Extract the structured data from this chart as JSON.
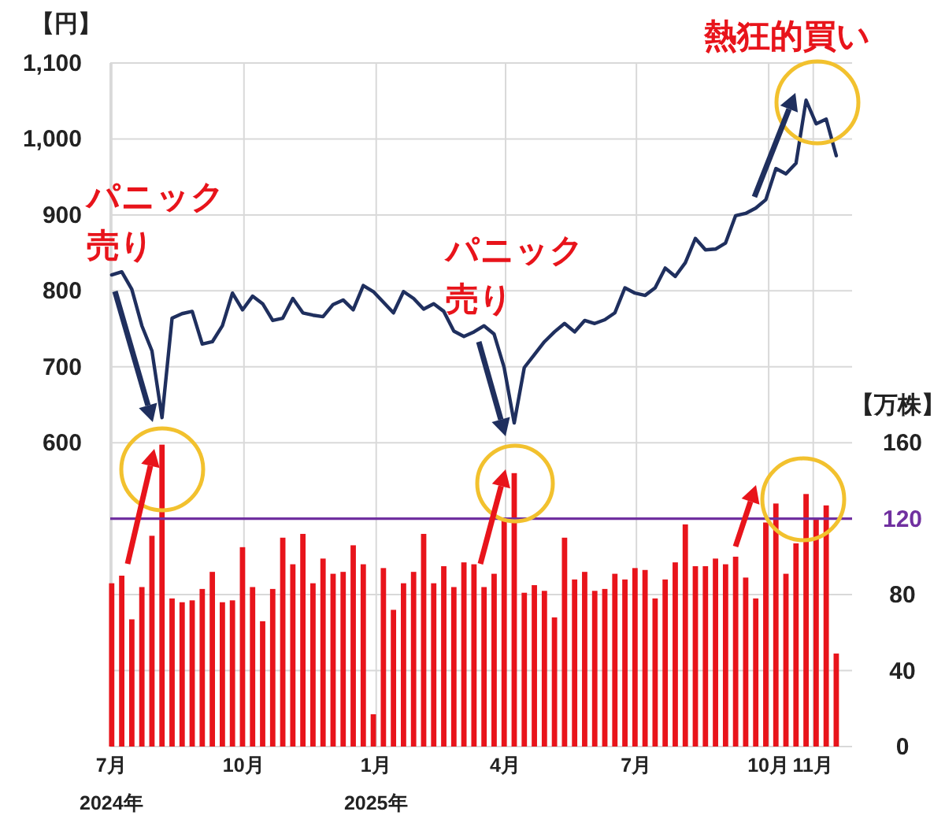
{
  "chart_data": {
    "type": "bar",
    "ylabel": "【円】",
    "y2label": "【万株】",
    "x": [
      "2024-07-01",
      "2024-07-08",
      "2024-07-15",
      "2024-07-22",
      "2024-07-29",
      "2024-08-05",
      "2024-08-12",
      "2024-08-19",
      "2024-08-26",
      "2024-09-02",
      "2024-09-09",
      "2024-09-16",
      "2024-09-23",
      "2024-09-30",
      "2024-10-07",
      "2024-10-14",
      "2024-10-21",
      "2024-10-28",
      "2024-11-04",
      "2024-11-11",
      "2024-11-18",
      "2024-11-25",
      "2024-12-02",
      "2024-12-09",
      "2024-12-16",
      "2024-12-23",
      "2024-12-30",
      "2025-01-06",
      "2025-01-13",
      "2025-01-20",
      "2025-01-27",
      "2025-02-03",
      "2025-02-10",
      "2025-02-17",
      "2025-02-24",
      "2025-03-03",
      "2025-03-10",
      "2025-03-17",
      "2025-03-24",
      "2025-03-31",
      "2025-04-07",
      "2025-04-14",
      "2025-04-21",
      "2025-04-28",
      "2025-05-05",
      "2025-05-12",
      "2025-05-19",
      "2025-05-26",
      "2025-06-02",
      "2025-06-09",
      "2025-06-16",
      "2025-06-23",
      "2025-06-30",
      "2025-07-07",
      "2025-07-14",
      "2025-07-21",
      "2025-07-28",
      "2025-08-04",
      "2025-08-11",
      "2025-08-18",
      "2025-08-25",
      "2025-09-01",
      "2025-09-08",
      "2025-09-15",
      "2025-09-22",
      "2025-09-29",
      "2025-10-06",
      "2025-10-13",
      "2025-10-20",
      "2025-10-27",
      "2025-11-03",
      "2025-11-10",
      "2025-11-17"
    ],
    "series": [
      {
        "type": "line",
        "color": "#1f2f5e",
        "values": [
          821,
          825,
          802,
          754,
          721,
          633,
          764,
          770,
          773,
          730,
          733,
          754,
          797,
          775,
          793,
          783,
          761,
          764,
          790,
          771,
          768,
          766,
          782,
          788,
          775,
          807,
          799,
          785,
          771,
          799,
          790,
          776,
          783,
          773,
          747,
          740,
          746,
          754,
          743,
          699,
          626,
          699,
          716,
          733,
          746,
          757,
          746,
          761,
          757,
          762,
          771,
          804,
          797,
          794,
          804,
          830,
          819,
          837,
          869,
          854,
          855,
          863,
          899,
          902,
          909,
          920,
          961,
          954,
          968,
          1051,
          1020,
          1026,
          978
        ]
      },
      {
        "axis": "y2",
        "color": "#e8141b",
        "values": [
          86,
          90,
          67,
          84,
          111,
          159,
          78,
          76,
          77,
          83,
          92,
          76,
          77,
          105,
          84,
          66,
          83,
          110,
          96,
          112,
          86,
          99,
          91,
          92,
          106,
          96,
          17,
          94,
          72,
          86,
          92,
          112,
          86,
          95,
          84,
          97,
          96,
          84,
          91,
          119,
          144,
          81,
          85,
          82,
          68,
          110,
          88,
          92,
          82,
          83,
          91,
          88,
          94,
          93,
          78,
          88,
          97,
          117,
          95,
          95,
          99,
          96,
          100,
          89,
          78,
          118,
          128,
          91,
          107,
          133,
          120,
          127,
          49
        ]
      }
    ],
    "xlim": [
      "2024-06-30",
      "2025-11-28"
    ],
    "xticks": [
      {
        "value": "2024-07-01",
        "label": "7月\n2024年"
      },
      {
        "value": "2024-10-01",
        "label": "10月"
      },
      {
        "value": "2025-01-01",
        "label": "1月\n2025年"
      },
      {
        "value": "2025-04-01",
        "label": "4月"
      },
      {
        "value": "2025-07-01",
        "label": "7月"
      },
      {
        "value": "2025-10-01",
        "label": "10月"
      },
      {
        "value": "2025-11-01",
        "label": "11月"
      }
    ],
    "ylim": [
      200,
      1100
    ],
    "yticks": [
      {
        "value": 200,
        "label": null
      },
      {
        "value": 300,
        "label": null
      },
      {
        "value": 400,
        "label": null
      },
      {
        "value": 500,
        "label": null
      },
      {
        "value": 600,
        "label": "600"
      },
      {
        "value": 700,
        "label": "700"
      },
      {
        "value": 800,
        "label": "800"
      },
      {
        "value": 900,
        "label": "900"
      },
      {
        "value": 1000,
        "label": "1,000"
      },
      {
        "value": 1100,
        "label": "1,100"
      }
    ],
    "y2lim": [
      0,
      360
    ],
    "y2ticks": [
      0,
      40,
      80,
      120,
      160
    ],
    "ref_lines": [
      {
        "axis": "y2",
        "value": 120,
        "color": "#7030a0"
      }
    ],
    "grid": true,
    "annotations": [
      "パニック",
      "売り",
      "パニック",
      "売り",
      "熱狂的買い"
    ]
  }
}
